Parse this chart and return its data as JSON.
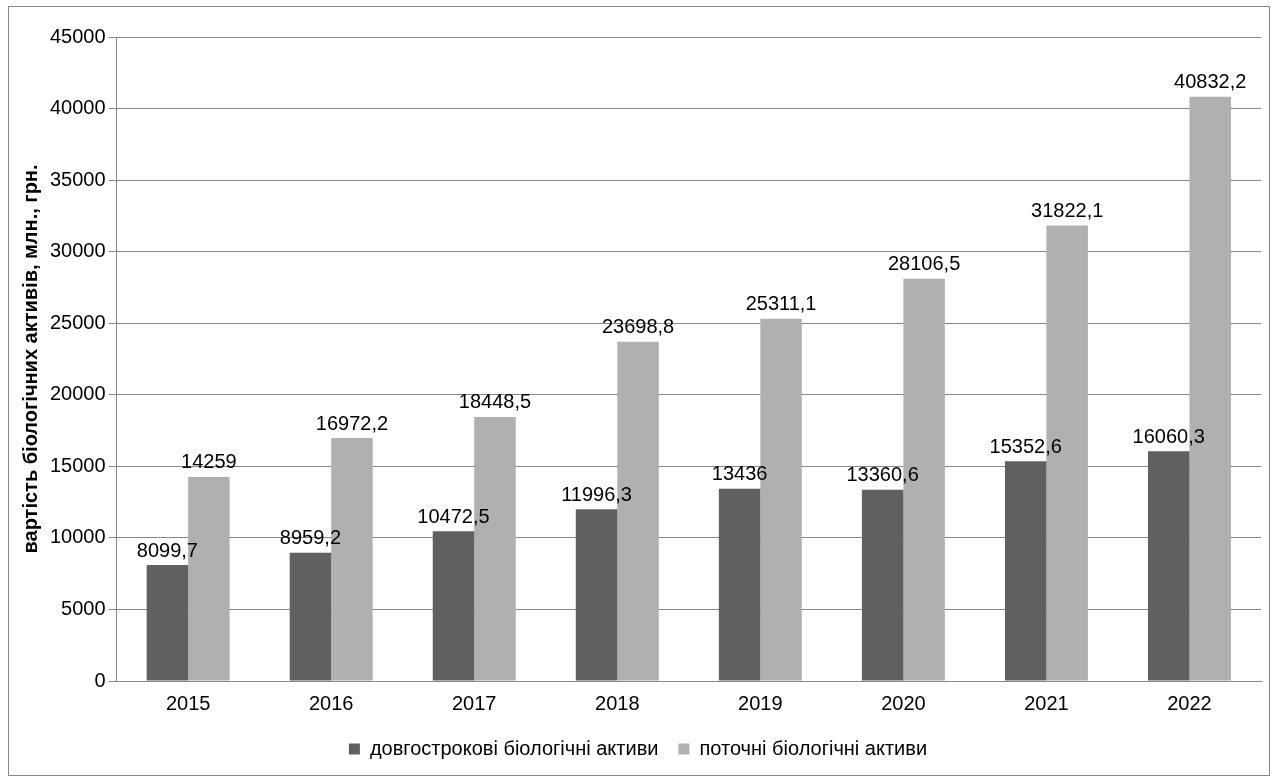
{
  "chart_data": {
    "type": "bar",
    "ylabel": "вартість біологічних активів, млн., грн.",
    "categories": [
      "2015",
      "2016",
      "2017",
      "2018",
      "2019",
      "2020",
      "2021",
      "2022"
    ],
    "series": [
      {
        "name": "довгострокові біологічні активи",
        "color": "#606060",
        "values": [
          8099.7,
          8959.2,
          10472.5,
          11996.3,
          13436,
          13360.6,
          15352.6,
          16060.3
        ],
        "value_labels": [
          "8099,7",
          "8959,2",
          "10472,5",
          "11996,3",
          "13436",
          "13360,6",
          "15352,6",
          "16060,3"
        ]
      },
      {
        "name": "поточні біологічні активи",
        "color": "#b0b0b0",
        "values": [
          14259,
          16972.2,
          18448.5,
          23698.8,
          25311.1,
          28106.5,
          31822.1,
          40832.2
        ],
        "value_labels": [
          "14259",
          "16972,2",
          "18448,5",
          "23698,8",
          "25311,1",
          "28106,5",
          "31822,1",
          "40832,2"
        ]
      }
    ],
    "ylim": [
      0,
      45000
    ],
    "yticks": [
      0,
      5000,
      10000,
      15000,
      20000,
      25000,
      30000,
      35000,
      40000,
      45000
    ],
    "grid": "y",
    "legend": "bottom"
  }
}
